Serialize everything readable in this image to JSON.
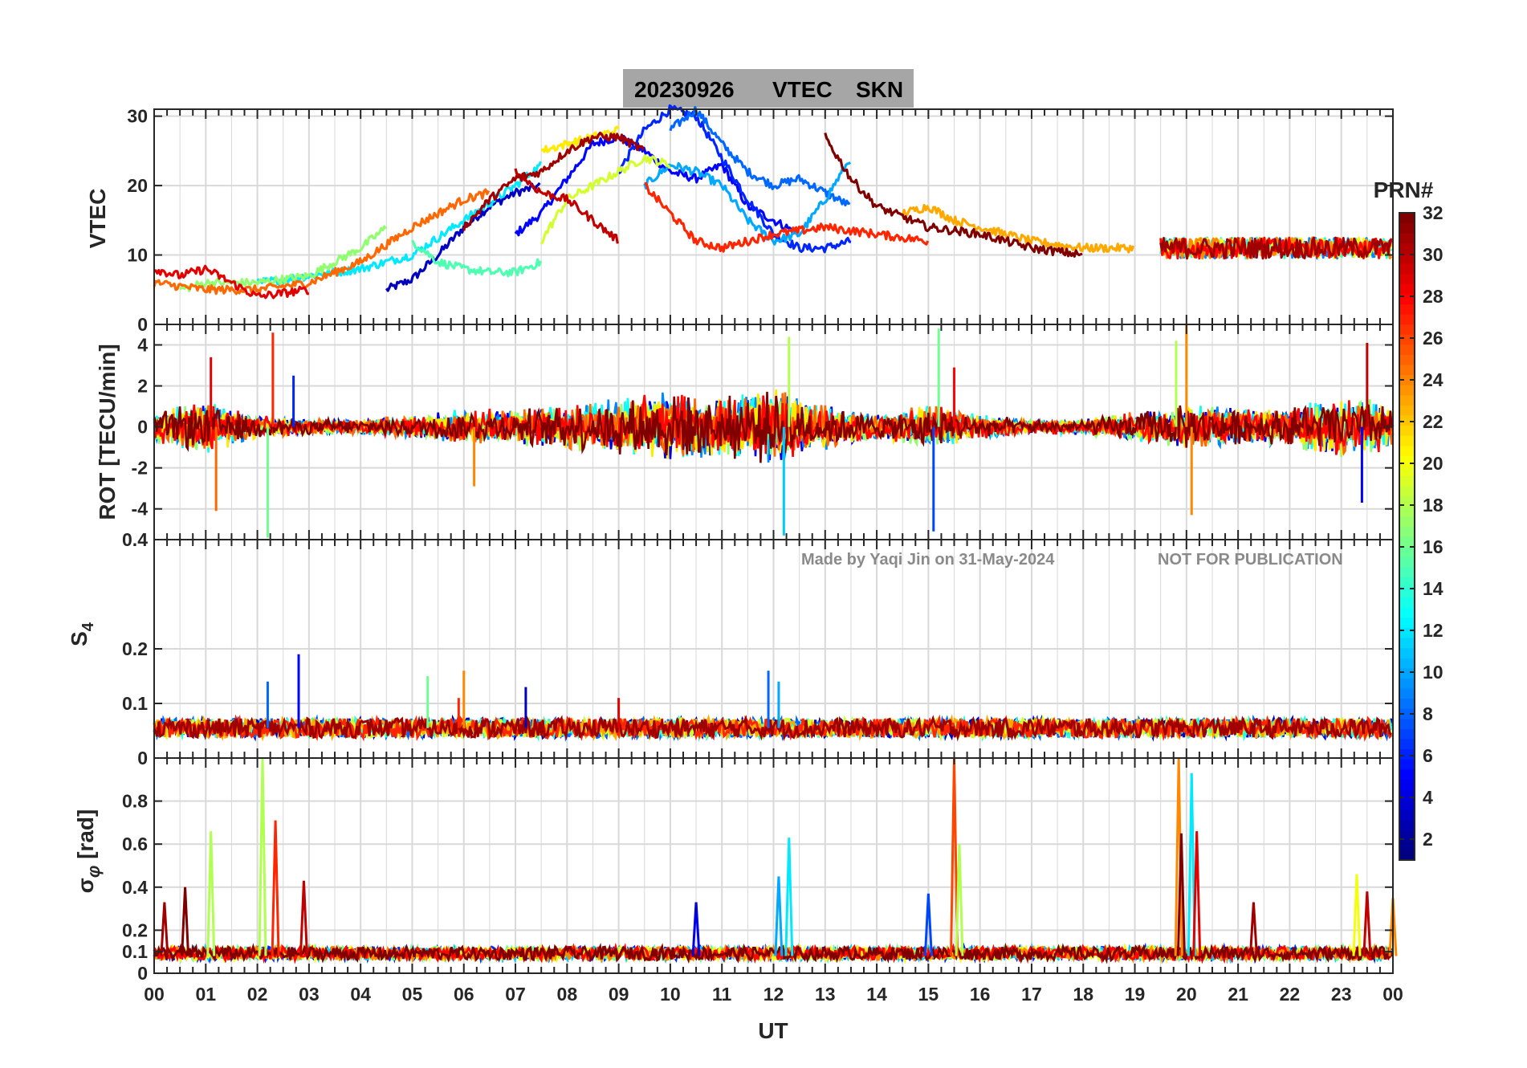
{
  "chart_data": {
    "type": "line",
    "title": {
      "date": "20230926",
      "product": "VTEC",
      "station": "SKN"
    },
    "xlabel": "UT",
    "x_ticks": [
      "00",
      "01",
      "02",
      "03",
      "04",
      "05",
      "06",
      "07",
      "08",
      "09",
      "10",
      "11",
      "12",
      "13",
      "14",
      "15",
      "16",
      "17",
      "18",
      "19",
      "20",
      "21",
      "22",
      "23",
      "00"
    ],
    "xlim_hours": [
      0,
      24
    ],
    "panels": [
      {
        "id": "vtec",
        "ylabel": "VTEC",
        "ylim": [
          0,
          31
        ],
        "yticks": [
          {
            "v": 0,
            "label": "0"
          },
          {
            "v": 10,
            "label": "10"
          },
          {
            "v": 20,
            "label": "20"
          },
          {
            "v": 30,
            "label": "30"
          }
        ],
        "series": [
          {
            "prn": 3,
            "points": [
              [
                4.5,
                5
              ],
              [
                5,
                6.5
              ],
              [
                5.5,
                10
              ],
              [
                6,
                14
              ],
              [
                6.5,
                17
              ],
              [
                7,
                19
              ],
              [
                7.5,
                20
              ]
            ]
          },
          {
            "prn": 5,
            "points": [
              [
                7,
                13
              ],
              [
                7.5,
                16
              ],
              [
                8,
                21
              ],
              [
                8.5,
                26
              ],
              [
                9,
                27
              ],
              [
                9.5,
                25
              ],
              [
                10,
                22
              ],
              [
                10.5,
                21
              ],
              [
                11,
                23
              ],
              [
                11.5,
                17
              ],
              [
                12,
                15
              ],
              [
                12.5,
                13
              ]
            ]
          },
          {
            "prn": 6,
            "points": [
              [
                9,
                22
              ],
              [
                9.5,
                28
              ],
              [
                10,
                31
              ],
              [
                10.5,
                30
              ],
              [
                11,
                24
              ],
              [
                11.5,
                18
              ],
              [
                12,
                13
              ],
              [
                12.5,
                11
              ],
              [
                13,
                11
              ],
              [
                13.5,
                12
              ]
            ]
          },
          {
            "prn": 8,
            "points": [
              [
                10,
                28
              ],
              [
                10.5,
                31
              ],
              [
                11,
                26
              ],
              [
                11.5,
                22
              ],
              [
                12,
                20
              ],
              [
                12.5,
                21
              ],
              [
                13,
                19
              ],
              [
                13.5,
                17
              ]
            ]
          },
          {
            "prn": 10,
            "points": [
              [
                9.5,
                20
              ],
              [
                10,
                23
              ],
              [
                10.5,
                22
              ],
              [
                11,
                20
              ],
              [
                11.5,
                15
              ],
              [
                12,
                12
              ],
              [
                12.5,
                13
              ],
              [
                13,
                18
              ],
              [
                13.5,
                24
              ]
            ]
          },
          {
            "prn": 12,
            "points": [
              [
                2,
                6
              ],
              [
                3,
                7
              ],
              [
                4,
                8
              ],
              [
                5,
                10
              ],
              [
                6,
                15
              ],
              [
                7,
                20
              ],
              [
                7.5,
                23
              ]
            ]
          },
          {
            "prn": 15,
            "points": [
              [
                5,
                12
              ],
              [
                5.5,
                9
              ],
              [
                6,
                8
              ],
              [
                6.5,
                7.5
              ],
              [
                7,
                7.5
              ],
              [
                7.5,
                9
              ]
            ]
          },
          {
            "prn": 17,
            "points": [
              [
                0.5,
                5
              ],
              [
                1,
                6
              ],
              [
                2,
                6
              ],
              [
                3,
                7
              ],
              [
                4,
                11
              ],
              [
                4.5,
                14
              ]
            ]
          },
          {
            "prn": 19,
            "points": [
              [
                7.5,
                12
              ],
              [
                8,
                18
              ],
              [
                8.5,
                20
              ],
              [
                9,
                22
              ],
              [
                9.5,
                24
              ],
              [
                10,
                23
              ]
            ]
          },
          {
            "prn": 21,
            "points": [
              [
                7.5,
                25
              ],
              [
                8,
                26
              ],
              [
                8.5,
                27
              ],
              [
                9,
                28
              ]
            ]
          },
          {
            "prn": 23,
            "points": [
              [
                14.5,
                16
              ],
              [
                15,
                17
              ],
              [
                15.5,
                15
              ],
              [
                16,
                14
              ],
              [
                17,
                12
              ],
              [
                18,
                11
              ],
              [
                19,
                11
              ]
            ]
          },
          {
            "prn": 25,
            "points": [
              [
                0,
                6
              ],
              [
                1,
                5
              ],
              [
                2,
                5
              ],
              [
                3,
                6
              ],
              [
                4,
                9
              ],
              [
                5,
                14
              ],
              [
                6,
                18
              ],
              [
                6.5,
                19
              ]
            ]
          },
          {
            "prn": 27,
            "points": [
              [
                9.5,
                20
              ],
              [
                10,
                16
              ],
              [
                10.5,
                12
              ],
              [
                11,
                11
              ],
              [
                11.5,
                12
              ],
              [
                12,
                13
              ],
              [
                13,
                14
              ],
              [
                14,
                13
              ],
              [
                15,
                12
              ]
            ]
          },
          {
            "prn": 29,
            "points": [
              [
                0,
                8
              ],
              [
                0.5,
                7
              ],
              [
                1,
                8
              ],
              [
                1.5,
                6
              ],
              [
                2,
                4
              ],
              [
                3,
                5
              ]
            ]
          },
          {
            "prn": 30,
            "points": [
              [
                7,
                22
              ],
              [
                7.5,
                19
              ],
              [
                8,
                18
              ],
              [
                8.5,
                15
              ],
              [
                9,
                12
              ]
            ]
          },
          {
            "prn": 31,
            "points": [
              [
                6,
                14
              ],
              [
                6.5,
                18
              ],
              [
                7,
                21
              ],
              [
                7.5,
                22
              ],
              [
                8,
                25
              ],
              [
                8.5,
                27
              ],
              [
                9,
                27
              ],
              [
                9.5,
                25
              ]
            ]
          },
          {
            "prn": 32,
            "points": [
              [
                13,
                27
              ],
              [
                13.5,
                21
              ],
              [
                14,
                17
              ],
              [
                15,
                14
              ],
              [
                16,
                13
              ],
              [
                17,
                11
              ],
              [
                18,
                10
              ]
            ]
          }
        ],
        "late_band": {
          "from": 19.5,
          "to": 24,
          "center": 11,
          "spread": 1.5
        }
      },
      {
        "id": "rot",
        "ylabel": "ROT [TECU/min]",
        "ylim": [
          -5.5,
          5
        ],
        "yticks": [
          {
            "v": -4,
            "label": "-4"
          },
          {
            "v": -2,
            "label": "-2"
          },
          {
            "v": 0,
            "label": "0"
          },
          {
            "v": 2,
            "label": "2"
          },
          {
            "v": 4,
            "label": "4"
          }
        ],
        "noise_envelope": [
          [
            0,
            0.8
          ],
          [
            1,
            1.4
          ],
          [
            2,
            0.6
          ],
          [
            3,
            0.4
          ],
          [
            4,
            0.4
          ],
          [
            5,
            0.6
          ],
          [
            6,
            0.9
          ],
          [
            7,
            0.9
          ],
          [
            8,
            1.2
          ],
          [
            9,
            1.5
          ],
          [
            10,
            1.8
          ],
          [
            11,
            1.6
          ],
          [
            12,
            2.0
          ],
          [
            13,
            1.2
          ],
          [
            14,
            0.6
          ],
          [
            15,
            1.2
          ],
          [
            16,
            0.6
          ],
          [
            17,
            0.4
          ],
          [
            18,
            0.4
          ],
          [
            19,
            0.8
          ],
          [
            20,
            1.2
          ],
          [
            21,
            1.0
          ],
          [
            22,
            1.0
          ],
          [
            23,
            1.6
          ],
          [
            24,
            1.2
          ]
        ],
        "spikes": [
          [
            1.2,
            -4.1,
            25
          ],
          [
            1.1,
            3.4,
            29
          ],
          [
            2.3,
            4.6,
            27
          ],
          [
            2.2,
            -5.4,
            16
          ],
          [
            2.7,
            2.5,
            6
          ],
          [
            12.3,
            4.4,
            18
          ],
          [
            12.2,
            -5.3,
            11
          ],
          [
            15.2,
            4.8,
            16
          ],
          [
            15.1,
            -5.1,
            7
          ],
          [
            15.5,
            2.9,
            28
          ],
          [
            19.8,
            4.2,
            18
          ],
          [
            20.0,
            5.0,
            24
          ],
          [
            20.1,
            -4.3,
            24
          ],
          [
            23.5,
            4.1,
            30
          ],
          [
            23.4,
            -3.7,
            5
          ],
          [
            6.2,
            -2.9,
            24
          ]
        ]
      },
      {
        "id": "s4",
        "ylabel": "S4",
        "ylim": [
          0,
          0.4
        ],
        "yticks": [
          {
            "v": 0,
            "label": "0"
          },
          {
            "v": 0.1,
            "label": "0.1"
          },
          {
            "v": 0.2,
            "label": "0.2"
          },
          {
            "v": 0.4,
            "label": "0.4"
          }
        ],
        "base": 0.055,
        "spikes": [
          [
            2.8,
            0.19,
            5
          ],
          [
            2.2,
            0.14,
            8
          ],
          [
            5.3,
            0.15,
            16
          ],
          [
            6.0,
            0.16,
            24
          ],
          [
            7.2,
            0.13,
            3
          ],
          [
            11.9,
            0.16,
            8
          ],
          [
            12.1,
            0.14,
            10
          ],
          [
            9.0,
            0.11,
            29
          ],
          [
            5.9,
            0.11,
            27
          ]
        ]
      },
      {
        "id": "sigphi",
        "ylabel": "σφ [rad]",
        "ylim": [
          0,
          1.0
        ],
        "yticks": [
          {
            "v": 0,
            "label": "0"
          },
          {
            "v": 0.1,
            "label": "0.1"
          },
          {
            "v": 0.2,
            "label": "0.2"
          },
          {
            "v": 0.4,
            "label": "0.4"
          },
          {
            "v": 0.6,
            "label": "0.6"
          },
          {
            "v": 0.8,
            "label": "0.8"
          }
        ],
        "base": 0.08,
        "spikes": [
          [
            0.2,
            0.33,
            31
          ],
          [
            0.6,
            0.4,
            32
          ],
          [
            1.1,
            0.66,
            18
          ],
          [
            2.1,
            1.0,
            18
          ],
          [
            2.35,
            0.71,
            27
          ],
          [
            2.9,
            0.43,
            30
          ],
          [
            12.3,
            0.63,
            12
          ],
          [
            12.1,
            0.45,
            10
          ],
          [
            10.5,
            0.33,
            4
          ],
          [
            15.0,
            0.37,
            7
          ],
          [
            15.5,
            1.0,
            26
          ],
          [
            15.6,
            0.6,
            18
          ],
          [
            19.85,
            1.0,
            24
          ],
          [
            19.9,
            0.65,
            32
          ],
          [
            20.1,
            0.93,
            12
          ],
          [
            20.2,
            0.66,
            29
          ],
          [
            21.3,
            0.33,
            31
          ],
          [
            23.3,
            0.46,
            20
          ],
          [
            23.5,
            0.38,
            30
          ],
          [
            24.0,
            0.35,
            24
          ]
        ]
      }
    ],
    "colorbar": {
      "label": "PRN#",
      "range": [
        1,
        32
      ],
      "ticks": [
        {
          "v": 2,
          "label": "2"
        },
        {
          "v": 4,
          "label": "4"
        },
        {
          "v": 6,
          "label": "6"
        },
        {
          "v": 8,
          "label": "8"
        },
        {
          "v": 10,
          "label": "10"
        },
        {
          "v": 12,
          "label": "12"
        },
        {
          "v": 14,
          "label": "14"
        },
        {
          "v": 16,
          "label": "16"
        },
        {
          "v": 18,
          "label": "18"
        },
        {
          "v": 20,
          "label": "20"
        },
        {
          "v": 22,
          "label": "22"
        },
        {
          "v": 24,
          "label": "24"
        },
        {
          "v": 26,
          "label": "26"
        },
        {
          "v": 28,
          "label": "28"
        },
        {
          "v": 30,
          "label": "30"
        },
        {
          "v": 32,
          "label": "32"
        }
      ],
      "colormap": "jet"
    }
  },
  "watermark": {
    "credit": "Made by Yaqi Jin on 31-May-2024",
    "notice": "NOT FOR PUBLICATION"
  },
  "colors": {
    "grid": "#d9d9d9",
    "axis": "#262626",
    "title_box": "#a6a6a6"
  }
}
